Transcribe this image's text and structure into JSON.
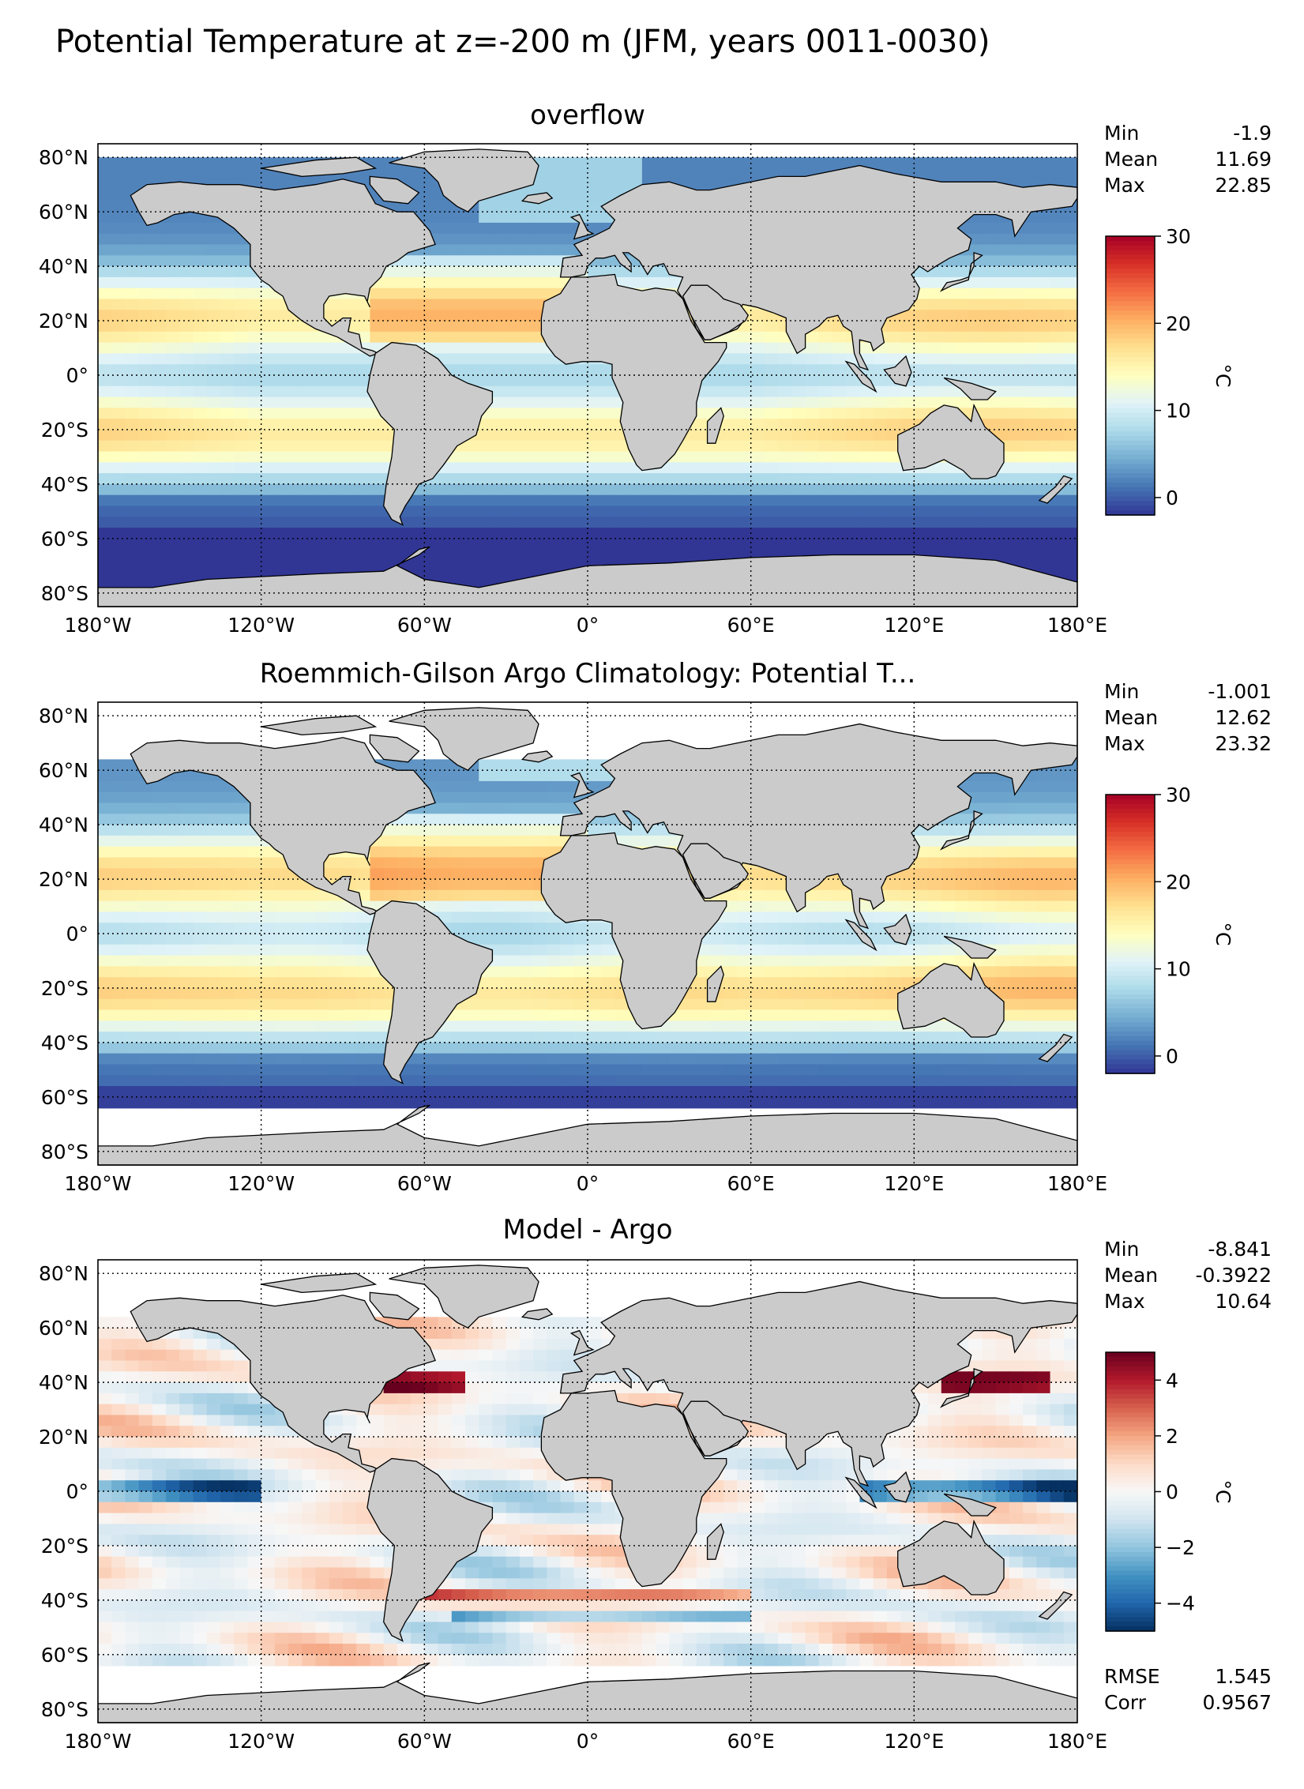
{
  "figure_title": "Potential Temperature at z=-200 m (JFM, years 0011-0030)",
  "colors": {
    "land": "#cbcbcb",
    "nodata": "#ffffff",
    "frame": "#000000",
    "grid": "#000000"
  },
  "chart_data": [
    {
      "type": "heatmap",
      "title": "overflow",
      "xlabel": "",
      "ylabel": "",
      "xticks": [
        "180°W",
        "120°W",
        "60°W",
        "0°",
        "60°E",
        "120°E",
        "180°E"
      ],
      "yticks": [
        "80°N",
        "60°N",
        "40°N",
        "20°N",
        "0°",
        "20°S",
        "40°S",
        "60°S",
        "80°S"
      ],
      "xlim": [
        -180,
        180
      ],
      "ylim": [
        -85,
        85
      ],
      "colormap": "RdYlBu_r",
      "colorbar": {
        "label": "°C",
        "ticks": [
          "0",
          "10",
          "20",
          "30"
        ],
        "range": [
          -2,
          30
        ]
      },
      "stats": [
        {
          "label": "Min",
          "value": "-1.9"
        },
        {
          "label": "Mean",
          "value": "11.69"
        },
        {
          "label": "Max",
          "value": "22.85"
        }
      ],
      "extra_stats": [],
      "field": "model"
    },
    {
      "type": "heatmap",
      "title": "Roemmich-Gilson Argo Climatology: Potential T...",
      "xlabel": "",
      "ylabel": "",
      "xticks": [
        "180°W",
        "120°W",
        "60°W",
        "0°",
        "60°E",
        "120°E",
        "180°E"
      ],
      "yticks": [
        "80°N",
        "60°N",
        "40°N",
        "20°N",
        "0°",
        "20°S",
        "40°S",
        "60°S",
        "80°S"
      ],
      "xlim": [
        -180,
        180
      ],
      "ylim": [
        -85,
        85
      ],
      "colormap": "RdYlBu_r",
      "colorbar": {
        "label": "°C",
        "ticks": [
          "0",
          "10",
          "20",
          "30"
        ],
        "range": [
          -2,
          30
        ]
      },
      "stats": [
        {
          "label": "Min",
          "value": "-1.001"
        },
        {
          "label": "Mean",
          "value": "12.62"
        },
        {
          "label": "Max",
          "value": "23.32"
        }
      ],
      "extra_stats": [],
      "field": "obs"
    },
    {
      "type": "heatmap",
      "title": "Model - Argo",
      "xlabel": "",
      "ylabel": "",
      "xticks": [
        "180°W",
        "120°W",
        "60°W",
        "0°",
        "60°E",
        "120°E",
        "180°E"
      ],
      "yticks": [
        "80°N",
        "60°N",
        "40°N",
        "20°N",
        "0°",
        "20°S",
        "40°S",
        "60°S",
        "80°S"
      ],
      "xlim": [
        -180,
        180
      ],
      "ylim": [
        -85,
        85
      ],
      "colormap": "RdBu_r",
      "colorbar": {
        "label": "°C",
        "ticks": [
          "4",
          "2",
          "0",
          "−2",
          "−4"
        ],
        "range": [
          -5,
          5
        ]
      },
      "stats": [
        {
          "label": "Min",
          "value": "-8.841"
        },
        {
          "label": "Mean",
          "value": "-0.3922"
        },
        {
          "label": "Max",
          "value": "10.64"
        }
      ],
      "extra_stats": [
        {
          "label": "RMSE",
          "value": "1.545"
        },
        {
          "label": "Corr",
          "value": "0.9567"
        }
      ],
      "field": "diff"
    }
  ]
}
